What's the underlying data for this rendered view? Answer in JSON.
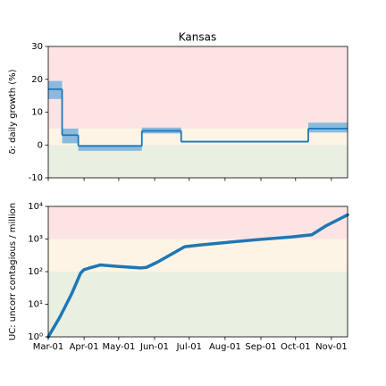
{
  "chart_data": [
    {
      "type": "step",
      "title": "Kansas",
      "ylabel": "δ: daily growth (%)",
      "xlim": [
        0,
        259
      ],
      "xticks": [
        0,
        31,
        61,
        92,
        122,
        153,
        184,
        214,
        245
      ],
      "ylim": [
        -10,
        30
      ],
      "yticks": [
        -10,
        0,
        10,
        20,
        30
      ],
      "bands": [
        {
          "from": -10,
          "to": 0,
          "color": "#e8f0e2"
        },
        {
          "from": 0,
          "to": 5,
          "color": "#fdf4e6"
        },
        {
          "from": 5,
          "to": 30,
          "color": "#fde4e4"
        }
      ],
      "series": [
        {
          "color": "#1f77b4",
          "band_color": "#8bbadf",
          "x": [
            0,
            12,
            26,
            81,
            115,
            225
          ],
          "values": [
            17,
            3,
            -0.3,
            4.3,
            1,
            5
          ],
          "lower": [
            14,
            0.5,
            -1.8,
            3.5,
            0.8,
            3.8
          ],
          "upper": [
            19.5,
            5,
            0,
            5.3,
            1.2,
            6.8
          ]
        }
      ]
    },
    {
      "type": "line",
      "ylabel": "UC: uncorr contagious / million",
      "yscale": "log",
      "xlim": [
        0,
        259
      ],
      "xticks": [
        {
          "value": 0,
          "label": "Mar-01"
        },
        {
          "value": 31,
          "label": "Apr-01"
        },
        {
          "value": 61,
          "label": "May-01"
        },
        {
          "value": 92,
          "label": "Jun-01"
        },
        {
          "value": 122,
          "label": "Jul-01"
        },
        {
          "value": 153,
          "label": "Aug-01"
        },
        {
          "value": 184,
          "label": "Sep-01"
        },
        {
          "value": 214,
          "label": "Oct-01"
        },
        {
          "value": 245,
          "label": "Nov-01"
        }
      ],
      "ylim": [
        1,
        10000
      ],
      "yticks": [
        {
          "value": 1,
          "label": "10⁰"
        },
        {
          "value": 10,
          "label": "10¹"
        },
        {
          "value": 100,
          "label": "10²"
        },
        {
          "value": 1000,
          "label": "10³"
        },
        {
          "value": 10000,
          "label": "10⁴"
        }
      ],
      "bands": [
        {
          "from": 1,
          "to": 100,
          "color": "#e8f0e2"
        },
        {
          "from": 100,
          "to": 1000,
          "color": "#fdf4e6"
        },
        {
          "from": 1000,
          "to": 10000,
          "color": "#fde4e4"
        }
      ],
      "series": [
        {
          "color": "#1f77b4",
          "x": [
            0,
            10,
            20,
            28,
            31,
            36,
            45,
            60,
            80,
            85,
            95,
            110,
            118,
            130,
            150,
            180,
            210,
            228,
            240,
            259
          ],
          "values": [
            1,
            4,
            20,
            90,
            115,
            130,
            160,
            145,
            130,
            135,
            200,
            400,
            580,
            650,
            760,
            950,
            1150,
            1350,
            2500,
            5500
          ]
        }
      ]
    }
  ]
}
